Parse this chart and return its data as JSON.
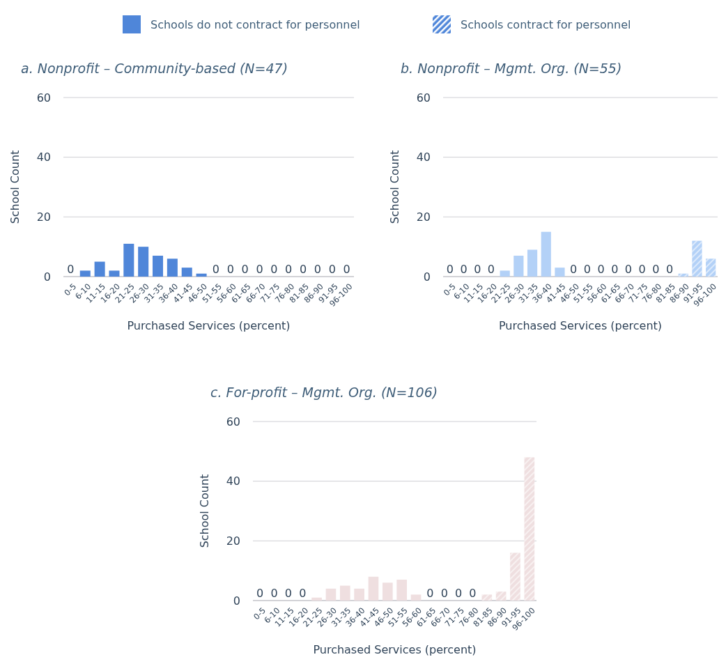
{
  "chart_data": [
    {
      "type": "bar",
      "title": "a. Nonprofit – Community-based (N=47)",
      "xlabel": "Purchased Services (percent)",
      "ylabel": "School Count",
      "categories": [
        "0-5",
        "6-10",
        "11-15",
        "16-20",
        "21-25",
        "26-30",
        "31-35",
        "36-40",
        "41-45",
        "46-50",
        "51-55",
        "56-60",
        "61-65",
        "66-70",
        "71-75",
        "76-80",
        "81-85",
        "86-90",
        "91-95",
        "96-100"
      ],
      "ylim": [
        0,
        60
      ],
      "yticks": [
        0,
        20,
        40,
        60
      ],
      "grid": "y",
      "legend": "top",
      "series": [
        {
          "name": "Schools do not contract for personnel",
          "color": "#4f86d9",
          "values": [
            0,
            2,
            5,
            2,
            11,
            10,
            7,
            6,
            3,
            1,
            0,
            0,
            0,
            0,
            0,
            0,
            0,
            0,
            0,
            0
          ],
          "value_labels": [
            "0",
            null,
            null,
            null,
            null,
            null,
            null,
            null,
            null,
            null,
            "0",
            "0",
            "0",
            "0",
            "0",
            "0",
            "0",
            "0",
            "0",
            "0"
          ]
        },
        {
          "name": "Schools contract for personnel",
          "color": "#4f86d9",
          "values": [
            null,
            null,
            null,
            null,
            null,
            null,
            null,
            null,
            null,
            null,
            null,
            null,
            null,
            null,
            null,
            null,
            null,
            null,
            null,
            null
          ]
        }
      ]
    },
    {
      "type": "bar",
      "title": "b. Nonprofit – Mgmt. Org. (N=55)",
      "xlabel": "Purchased Services (percent)",
      "ylabel": "School Count",
      "categories": [
        "0-5",
        "6-10",
        "11-15",
        "16-20",
        "21-25",
        "26-30",
        "31-35",
        "36-40",
        "41-45",
        "46-50",
        "51-55",
        "56-60",
        "61-65",
        "66-70",
        "71-75",
        "76-80",
        "81-85",
        "86-90",
        "91-95",
        "96-100"
      ],
      "ylim": [
        0,
        60
      ],
      "yticks": [
        0,
        20,
        40,
        60
      ],
      "grid": "y",
      "series": [
        {
          "color": "#b3d1f7",
          "values": [
            0,
            0,
            0,
            0,
            2,
            7,
            9,
            15,
            3,
            0,
            0,
            0,
            0,
            0,
            0,
            0,
            0,
            null,
            null,
            null
          ],
          "value_labels": [
            "0",
            "0",
            "0",
            "0",
            null,
            null,
            null,
            null,
            null,
            "0",
            "0",
            "0",
            "0",
            "0",
            "0",
            "0",
            "0",
            null,
            null,
            null
          ]
        },
        {
          "color": "#b3d1f7",
          "values": [
            null,
            null,
            null,
            null,
            null,
            null,
            null,
            null,
            null,
            null,
            null,
            null,
            null,
            null,
            null,
            null,
            null,
            1,
            12,
            6
          ]
        }
      ]
    },
    {
      "type": "bar",
      "title": "c. For-profit – Mgmt. Org. (N=106)",
      "xlabel": "Purchased Services (percent)",
      "ylabel": "School Count",
      "categories": [
        "0-5",
        "6-10",
        "11-15",
        "16-20",
        "21-25",
        "26-30",
        "31-35",
        "36-40",
        "41-45",
        "46-50",
        "51-55",
        "56-60",
        "61-65",
        "66-70",
        "71-75",
        "76-80",
        "81-85",
        "86-90",
        "91-95",
        "96-100"
      ],
      "ylim": [
        0,
        60
      ],
      "yticks": [
        0,
        20,
        40,
        60
      ],
      "grid": "y",
      "series": [
        {
          "color": "#efdfe0",
          "values": [
            0,
            0,
            0,
            0,
            1,
            4,
            5,
            4,
            8,
            6,
            7,
            2,
            0,
            0,
            0,
            0,
            null,
            null,
            null,
            null
          ],
          "value_labels": [
            "0",
            "0",
            "0",
            "0",
            null,
            null,
            null,
            null,
            null,
            null,
            null,
            null,
            "0",
            "0",
            "0",
            "0",
            null,
            null,
            null,
            null
          ]
        },
        {
          "color": "#efdfe0",
          "values": [
            null,
            null,
            null,
            null,
            null,
            null,
            null,
            null,
            null,
            null,
            null,
            null,
            null,
            null,
            null,
            null,
            2,
            3,
            16,
            48
          ]
        }
      ]
    }
  ]
}
